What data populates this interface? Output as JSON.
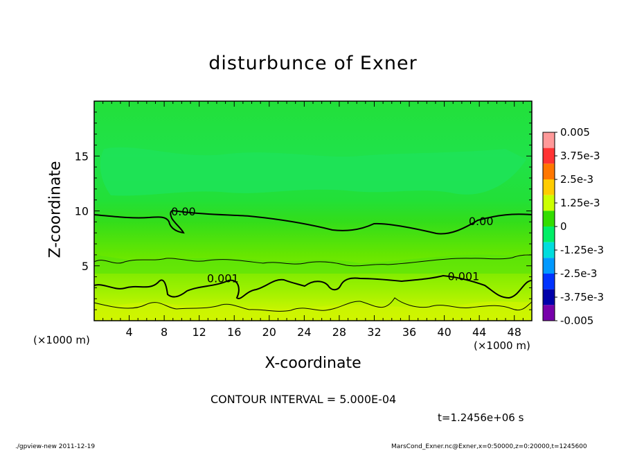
{
  "chart_data": {
    "type": "heatmap",
    "title": "disturbunce of Exner",
    "xlabel": "X-coordinate",
    "ylabel": "Z-coordinate",
    "x_unit": "(×1000 m)",
    "y_unit": "(×1000 m)",
    "xlim": [
      0,
      50
    ],
    "ylim": [
      0,
      20
    ],
    "x_ticks": [
      "4",
      "8",
      "12",
      "16",
      "20",
      "24",
      "28",
      "32",
      "36",
      "40",
      "44",
      "48"
    ],
    "y_ticks": [
      "5",
      "10",
      "15"
    ],
    "colorbar_labels": [
      "0.005",
      "3.75e-3",
      "2.5e-3",
      "1.25e-3",
      "0",
      "-1.25e-3",
      "-2.5e-3",
      "-3.75e-3",
      "-0.005"
    ],
    "colorbar_colors": [
      "#ff9999",
      "#ff3333",
      "#ff7700",
      "#ffcc00",
      "#ccff00",
      "#33dd00",
      "#00ee66",
      "#00dddd",
      "#0099ff",
      "#0033ff",
      "#0000aa",
      "#7700aa"
    ],
    "contour_labels": [
      "0.00",
      "0.00",
      "0.001",
      "0.001"
    ],
    "contour_interval": "CONTOUR INTERVAL = 5.000E-04",
    "time_label": "t=1.2456e+06 s",
    "footer_left": "./gpview-new   2011-12-19",
    "footer_right": "MarsCond_Exner.nc@Exner,x=0:50000,z=0:20000,t=1245600"
  }
}
